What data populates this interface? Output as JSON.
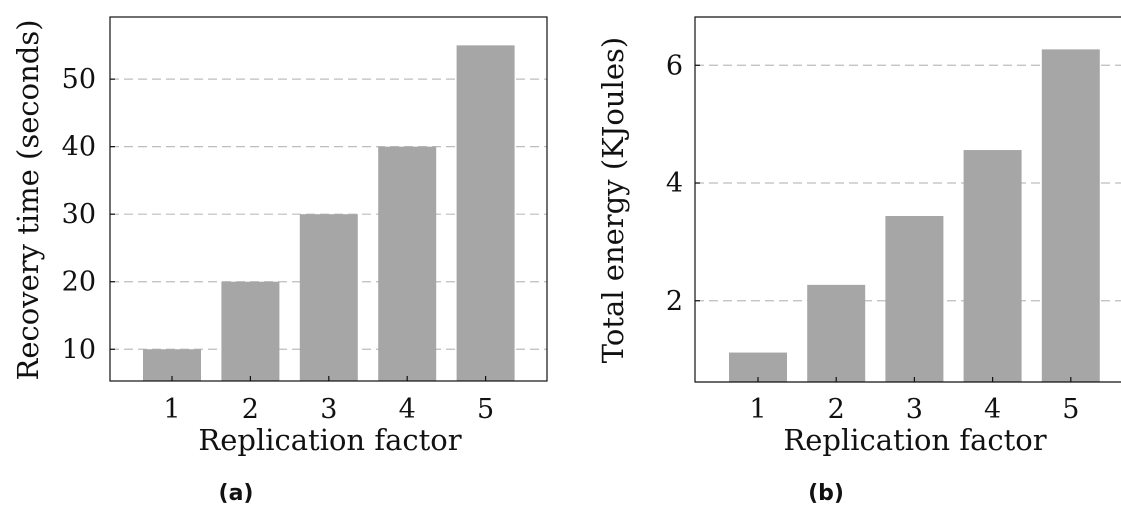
{
  "chart_data": [
    {
      "type": "bar",
      "categories": [
        "1",
        "2",
        "3",
        "4",
        "5"
      ],
      "values": [
        10,
        20,
        30,
        40,
        55
      ],
      "xlabel": "Replication factor",
      "ylabel": "Recovery time (seconds)",
      "yticks": [
        10,
        20,
        30,
        40,
        50
      ],
      "ylim": [
        5.3,
        59.2
      ],
      "grid": true,
      "caption": "(a)"
    },
    {
      "type": "bar",
      "categories": [
        "1",
        "2",
        "3",
        "4",
        "5"
      ],
      "values": [
        1.12,
        2.27,
        3.44,
        4.56,
        6.27
      ],
      "xlabel": "Replication factor",
      "ylabel": "Total energy (KJoules)",
      "yticks": [
        2,
        4,
        6
      ],
      "ylim": [
        0.62,
        6.82
      ],
      "grid": true,
      "caption": "(b)"
    }
  ]
}
